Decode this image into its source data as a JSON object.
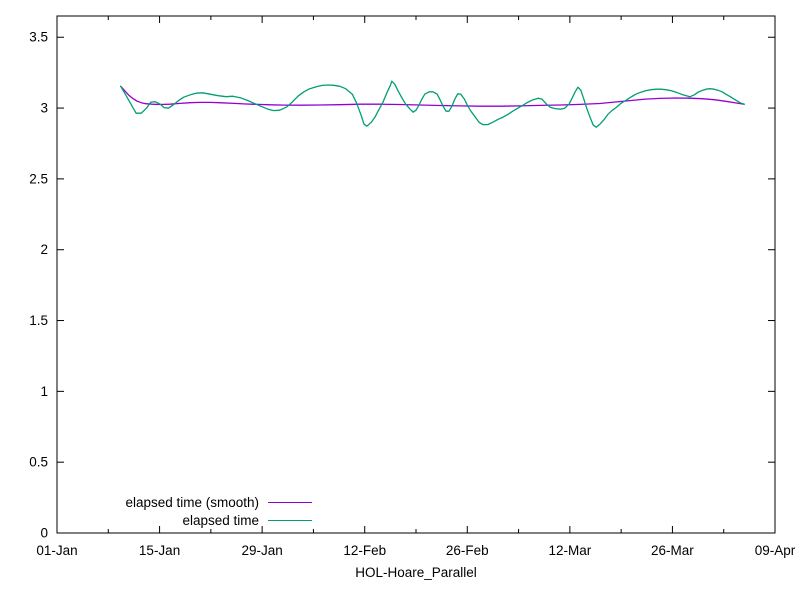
{
  "chart_data": {
    "type": "line",
    "title": "",
    "xlabel": "HOL-Hoare_Parallel",
    "ylabel": "",
    "grid": false,
    "legend_position": "bottom-left-inside",
    "background": "#ffffff",
    "axis_color": "#000000",
    "x_axis": {
      "unit": "days since 01-Jan",
      "range_days": [
        0,
        98
      ],
      "major_ticks": [
        {
          "label": "01-Jan",
          "day": 0
        },
        {
          "label": "15-Jan",
          "day": 14
        },
        {
          "label": "29-Jan",
          "day": 28
        },
        {
          "label": "12-Feb",
          "day": 42
        },
        {
          "label": "26-Feb",
          "day": 56
        },
        {
          "label": "12-Mar",
          "day": 70
        },
        {
          "label": "26-Mar",
          "day": 84
        },
        {
          "label": "09-Apr",
          "day": 98
        }
      ],
      "minor_tick_days": [
        7,
        21,
        35,
        49,
        63,
        77,
        91
      ]
    },
    "y_axis": {
      "ylim": [
        0,
        3.65
      ],
      "major_ticks": [
        {
          "label": "0",
          "value": 0
        },
        {
          "label": "0.5",
          "value": 0.5
        },
        {
          "label": "1",
          "value": 1
        },
        {
          "label": "1.5",
          "value": 1.5
        },
        {
          "label": "2",
          "value": 2
        },
        {
          "label": "2.5",
          "value": 2.5
        },
        {
          "label": "3",
          "value": 3
        },
        {
          "label": "3.5",
          "value": 3.5
        }
      ]
    },
    "series": [
      {
        "name": "elapsed time (smooth)",
        "color": "#9400d3",
        "points": [
          [
            8.7,
            3.154
          ],
          [
            9.3,
            3.119
          ],
          [
            9.8,
            3.091
          ],
          [
            10.4,
            3.066
          ],
          [
            10.9,
            3.049
          ],
          [
            11.5,
            3.038
          ],
          [
            12.1,
            3.031
          ],
          [
            13.0,
            3.027
          ],
          [
            14.1,
            3.025
          ],
          [
            15.4,
            3.027
          ],
          [
            16.8,
            3.033
          ],
          [
            18.2,
            3.038
          ],
          [
            19.5,
            3.04
          ],
          [
            20.9,
            3.04
          ],
          [
            22.5,
            3.037
          ],
          [
            24.2,
            3.033
          ],
          [
            25.8,
            3.029
          ],
          [
            27.4,
            3.026
          ],
          [
            29.1,
            3.023
          ],
          [
            31.1,
            3.021
          ],
          [
            33.2,
            3.02
          ],
          [
            35.9,
            3.022
          ],
          [
            38.6,
            3.024
          ],
          [
            41.4,
            3.027
          ],
          [
            44.1,
            3.027
          ],
          [
            46.8,
            3.025
          ],
          [
            49.5,
            3.022
          ],
          [
            52.3,
            3.018
          ],
          [
            55.0,
            3.015
          ],
          [
            57.7,
            3.013
          ],
          [
            60.5,
            3.013
          ],
          [
            63.2,
            3.015
          ],
          [
            65.9,
            3.019
          ],
          [
            68.7,
            3.022
          ],
          [
            71.4,
            3.026
          ],
          [
            74.1,
            3.032
          ],
          [
            76.2,
            3.043
          ],
          [
            78.2,
            3.053
          ],
          [
            80.3,
            3.063
          ],
          [
            82.3,
            3.068
          ],
          [
            84.4,
            3.071
          ],
          [
            86.4,
            3.07
          ],
          [
            88.0,
            3.066
          ],
          [
            89.7,
            3.059
          ],
          [
            91.3,
            3.048
          ],
          [
            92.7,
            3.036
          ],
          [
            93.8,
            3.027
          ]
        ]
      },
      {
        "name": "elapsed time",
        "color": "#009e73",
        "points": [
          [
            8.7,
            3.154
          ],
          [
            9.4,
            3.091
          ],
          [
            10.1,
            3.027
          ],
          [
            10.8,
            2.964
          ],
          [
            11.5,
            2.964
          ],
          [
            12.2,
            2.999
          ],
          [
            12.8,
            3.042
          ],
          [
            13.4,
            3.045
          ],
          [
            14.1,
            3.027
          ],
          [
            14.6,
            3.003
          ],
          [
            15.2,
            2.999
          ],
          [
            15.8,
            3.02
          ],
          [
            16.5,
            3.049
          ],
          [
            17.3,
            3.077
          ],
          [
            18.2,
            3.094
          ],
          [
            19.0,
            3.105
          ],
          [
            19.9,
            3.108
          ],
          [
            20.9,
            3.098
          ],
          [
            22.0,
            3.087
          ],
          [
            23.1,
            3.08
          ],
          [
            24.0,
            3.084
          ],
          [
            25.0,
            3.073
          ],
          [
            25.9,
            3.056
          ],
          [
            26.9,
            3.034
          ],
          [
            27.8,
            3.013
          ],
          [
            28.8,
            2.992
          ],
          [
            29.6,
            2.982
          ],
          [
            30.4,
            2.985
          ],
          [
            31.3,
            3.006
          ],
          [
            32.1,
            3.042
          ],
          [
            32.9,
            3.084
          ],
          [
            33.7,
            3.115
          ],
          [
            34.5,
            3.137
          ],
          [
            35.4,
            3.151
          ],
          [
            36.2,
            3.16
          ],
          [
            37.0,
            3.163
          ],
          [
            37.8,
            3.161
          ],
          [
            38.6,
            3.154
          ],
          [
            39.4,
            3.137
          ],
          [
            40.3,
            3.098
          ],
          [
            40.9,
            3.034
          ],
          [
            41.5,
            2.95
          ],
          [
            41.9,
            2.886
          ],
          [
            42.3,
            2.872
          ],
          [
            42.9,
            2.9
          ],
          [
            43.4,
            2.936
          ],
          [
            43.9,
            2.985
          ],
          [
            44.5,
            3.042
          ],
          [
            45.0,
            3.105
          ],
          [
            45.5,
            3.161
          ],
          [
            45.7,
            3.19
          ],
          [
            46.1,
            3.168
          ],
          [
            46.5,
            3.126
          ],
          [
            47.1,
            3.07
          ],
          [
            47.6,
            3.027
          ],
          [
            48.2,
            2.992
          ],
          [
            48.6,
            2.971
          ],
          [
            49.0,
            2.985
          ],
          [
            49.4,
            3.02
          ],
          [
            49.8,
            3.063
          ],
          [
            50.2,
            3.098
          ],
          [
            50.8,
            3.115
          ],
          [
            51.3,
            3.115
          ],
          [
            51.9,
            3.098
          ],
          [
            52.3,
            3.056
          ],
          [
            52.7,
            3.013
          ],
          [
            53.1,
            2.978
          ],
          [
            53.5,
            2.978
          ],
          [
            53.9,
            3.013
          ],
          [
            54.3,
            3.063
          ],
          [
            54.7,
            3.101
          ],
          [
            55.1,
            3.098
          ],
          [
            55.6,
            3.063
          ],
          [
            56.0,
            3.02
          ],
          [
            56.5,
            2.978
          ],
          [
            57.1,
            2.936
          ],
          [
            57.6,
            2.9
          ],
          [
            58.1,
            2.883
          ],
          [
            58.8,
            2.883
          ],
          [
            59.5,
            2.9
          ],
          [
            60.2,
            2.921
          ],
          [
            60.9,
            2.936
          ],
          [
            61.6,
            2.957
          ],
          [
            62.2,
            2.978
          ],
          [
            62.9,
            2.999
          ],
          [
            63.6,
            3.02
          ],
          [
            64.3,
            3.042
          ],
          [
            65.0,
            3.059
          ],
          [
            65.7,
            3.07
          ],
          [
            66.2,
            3.063
          ],
          [
            66.7,
            3.034
          ],
          [
            67.3,
            3.006
          ],
          [
            68.0,
            2.996
          ],
          [
            68.7,
            2.992
          ],
          [
            69.3,
            2.999
          ],
          [
            69.9,
            3.027
          ],
          [
            70.3,
            3.07
          ],
          [
            70.7,
            3.112
          ],
          [
            71.1,
            3.147
          ],
          [
            71.5,
            3.126
          ],
          [
            71.9,
            3.063
          ],
          [
            72.3,
            2.999
          ],
          [
            72.8,
            2.929
          ],
          [
            73.2,
            2.879
          ],
          [
            73.6,
            2.865
          ],
          [
            74.1,
            2.886
          ],
          [
            74.7,
            2.921
          ],
          [
            75.2,
            2.957
          ],
          [
            75.8,
            2.985
          ],
          [
            76.3,
            3.003
          ],
          [
            77.0,
            3.034
          ],
          [
            77.7,
            3.056
          ],
          [
            78.3,
            3.077
          ],
          [
            79.0,
            3.098
          ],
          [
            79.7,
            3.112
          ],
          [
            80.4,
            3.123
          ],
          [
            81.1,
            3.13
          ],
          [
            81.8,
            3.133
          ],
          [
            82.4,
            3.133
          ],
          [
            83.1,
            3.13
          ],
          [
            83.8,
            3.123
          ],
          [
            84.5,
            3.112
          ],
          [
            85.2,
            3.098
          ],
          [
            85.9,
            3.087
          ],
          [
            86.4,
            3.08
          ],
          [
            87.0,
            3.094
          ],
          [
            87.5,
            3.112
          ],
          [
            88.0,
            3.123
          ],
          [
            88.6,
            3.133
          ],
          [
            89.1,
            3.137
          ],
          [
            89.7,
            3.133
          ],
          [
            90.2,
            3.126
          ],
          [
            90.8,
            3.115
          ],
          [
            91.3,
            3.098
          ],
          [
            91.9,
            3.08
          ],
          [
            92.4,
            3.063
          ],
          [
            93.0,
            3.045
          ],
          [
            93.4,
            3.034
          ],
          [
            93.8,
            3.027
          ]
        ]
      }
    ]
  }
}
